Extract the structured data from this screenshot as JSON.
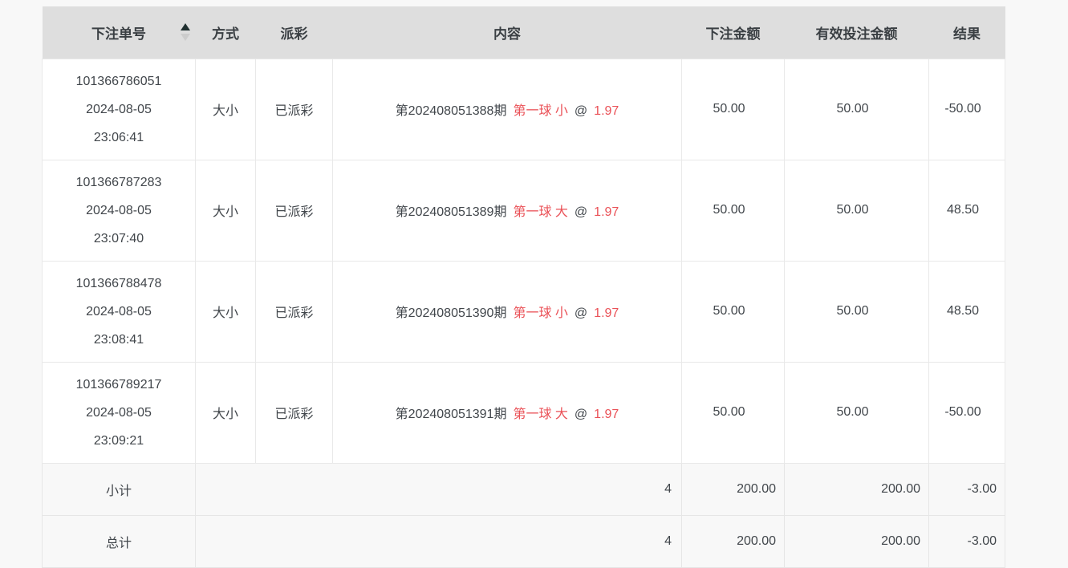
{
  "page": {
    "background": "#f8f8f8"
  },
  "colors": {
    "header_bg": "#dedede",
    "row_bg": "#ffffff",
    "footer_bg": "#f8f8f8",
    "border": "#e9e9e9",
    "text": "#41464b",
    "red": "#ea5157",
    "sort_caret_active": "#203030",
    "sort_caret_inactive": "#cccccc"
  },
  "table": {
    "sort": {
      "column": "下注单号",
      "direction": "ascending"
    },
    "columns": [
      {
        "label": "下注单号",
        "sortable": true
      },
      {
        "label": "方式"
      },
      {
        "label": "派彩"
      },
      {
        "label": "内容"
      },
      {
        "label": "下注金额"
      },
      {
        "label": "有效投注金额"
      },
      {
        "label": "结果"
      }
    ],
    "rows": [
      {
        "order_no": "101366786051",
        "date": "2024-08-05",
        "time": "23:06:41",
        "method": "大小",
        "payout": "已派彩",
        "content": {
          "period": "第202408051388期",
          "pick": "第一球 小",
          "at": "@",
          "odds": "1.97"
        },
        "bet_amount": "50.00",
        "valid_amount": "50.00",
        "result": "-50.00"
      },
      {
        "order_no": "101366787283",
        "date": "2024-08-05",
        "time": "23:07:40",
        "method": "大小",
        "payout": "已派彩",
        "content": {
          "period": "第202408051389期",
          "pick": "第一球 大",
          "at": "@",
          "odds": "1.97"
        },
        "bet_amount": "50.00",
        "valid_amount": "50.00",
        "result": "48.50"
      },
      {
        "order_no": "101366788478",
        "date": "2024-08-05",
        "time": "23:08:41",
        "method": "大小",
        "payout": "已派彩",
        "content": {
          "period": "第202408051390期",
          "pick": "第一球 小",
          "at": "@",
          "odds": "1.97"
        },
        "bet_amount": "50.00",
        "valid_amount": "50.00",
        "result": "48.50"
      },
      {
        "order_no": "101366789217",
        "date": "2024-08-05",
        "time": "23:09:21",
        "method": "大小",
        "payout": "已派彩",
        "content": {
          "period": "第202408051391期",
          "pick": "第一球 大",
          "at": "@",
          "odds": "1.97"
        },
        "bet_amount": "50.00",
        "valid_amount": "50.00",
        "result": "-50.00"
      }
    ],
    "footer": [
      {
        "label": "小计",
        "count": "4",
        "bet_amount": "200.00",
        "valid_amount": "200.00",
        "result": "-3.00"
      },
      {
        "label": "总计",
        "count": "4",
        "bet_amount": "200.00",
        "valid_amount": "200.00",
        "result": "-3.00"
      }
    ]
  }
}
